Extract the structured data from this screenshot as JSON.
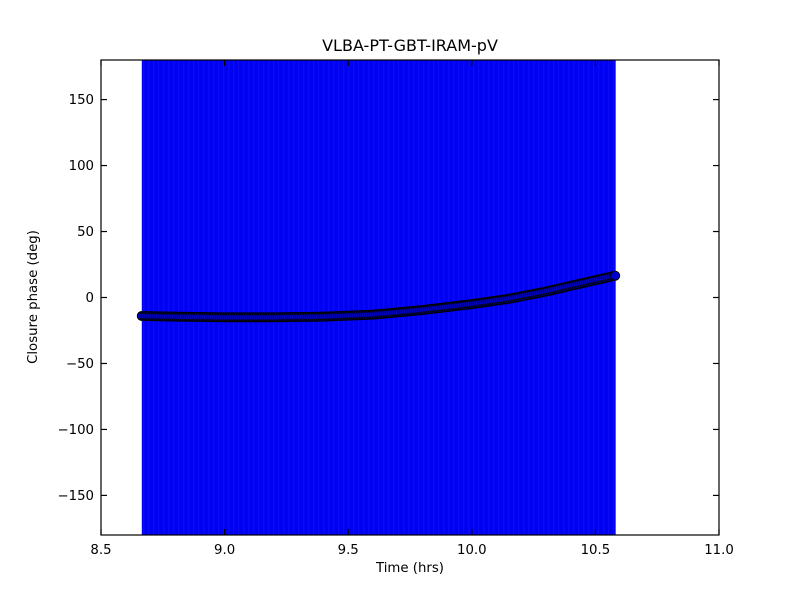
{
  "figure": {
    "background": "#ffffff",
    "text_color": "#000000",
    "axes_color": "#000000"
  },
  "chart_data": {
    "type": "scatter",
    "title": "VLBA-PT-GBT-IRAM-pV",
    "xlabel": "Time (hrs)",
    "ylabel": "Closure phase (deg)",
    "xlim": [
      8.5,
      11.0
    ],
    "ylim": [
      -180,
      180
    ],
    "xticks": [
      8.5,
      9.0,
      9.5,
      10.0,
      10.5,
      11.0
    ],
    "yticks": [
      -150,
      -100,
      -50,
      0,
      50,
      100,
      150
    ],
    "grid": false,
    "legend": null,
    "tick_direction": "in",
    "error_band": {
      "note": "dense vertical error bars spanning full y-range",
      "x_start": 8.665,
      "x_end": 10.582,
      "color": "#0000f2",
      "stripe_color": "#2222ff"
    },
    "series": [
      {
        "name": "closure-phase",
        "marker": "circle",
        "marker_fill": "#0000cc",
        "marker_edge": "#000000",
        "x": [
          8.665,
          8.8,
          9.0,
          9.2,
          9.4,
          9.6,
          9.8,
          10.0,
          10.15,
          10.3,
          10.45,
          10.58
        ],
        "y": [
          -14.0,
          -14.5,
          -15.0,
          -15.0,
          -14.5,
          -13.0,
          -9.5,
          -5.0,
          -1.0,
          4.5,
          11.0,
          16.5
        ]
      }
    ]
  }
}
